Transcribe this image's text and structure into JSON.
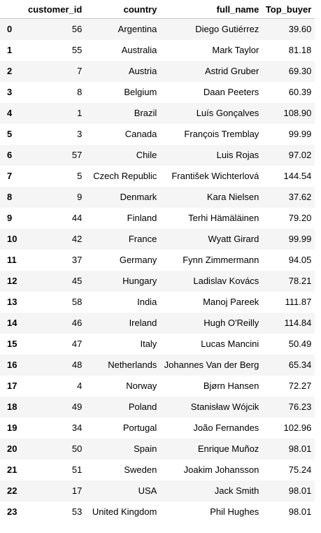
{
  "table": {
    "index_header": "",
    "columns": [
      "customer_id",
      "country",
      "full_name",
      "Top_buyer"
    ],
    "rows": [
      {
        "index": "0",
        "customer_id": "56",
        "country": "Argentina",
        "full_name": "Diego Gutiérrez",
        "Top_buyer": "39.60"
      },
      {
        "index": "1",
        "customer_id": "55",
        "country": "Australia",
        "full_name": "Mark Taylor",
        "Top_buyer": "81.18"
      },
      {
        "index": "2",
        "customer_id": "7",
        "country": "Austria",
        "full_name": "Astrid Gruber",
        "Top_buyer": "69.30"
      },
      {
        "index": "3",
        "customer_id": "8",
        "country": "Belgium",
        "full_name": "Daan Peeters",
        "Top_buyer": "60.39"
      },
      {
        "index": "4",
        "customer_id": "1",
        "country": "Brazil",
        "full_name": "Luís Gonçalves",
        "Top_buyer": "108.90"
      },
      {
        "index": "5",
        "customer_id": "3",
        "country": "Canada",
        "full_name": "François Tremblay",
        "Top_buyer": "99.99"
      },
      {
        "index": "6",
        "customer_id": "57",
        "country": "Chile",
        "full_name": "Luis Rojas",
        "Top_buyer": "97.02"
      },
      {
        "index": "7",
        "customer_id": "5",
        "country": "Czech Republic",
        "full_name": "František Wichterlová",
        "Top_buyer": "144.54"
      },
      {
        "index": "8",
        "customer_id": "9",
        "country": "Denmark",
        "full_name": "Kara Nielsen",
        "Top_buyer": "37.62"
      },
      {
        "index": "9",
        "customer_id": "44",
        "country": "Finland",
        "full_name": "Terhi Hämäläinen",
        "Top_buyer": "79.20"
      },
      {
        "index": "10",
        "customer_id": "42",
        "country": "France",
        "full_name": "Wyatt Girard",
        "Top_buyer": "99.99"
      },
      {
        "index": "11",
        "customer_id": "37",
        "country": "Germany",
        "full_name": "Fynn Zimmermann",
        "Top_buyer": "94.05"
      },
      {
        "index": "12",
        "customer_id": "45",
        "country": "Hungary",
        "full_name": "Ladislav Kovács",
        "Top_buyer": "78.21"
      },
      {
        "index": "13",
        "customer_id": "58",
        "country": "India",
        "full_name": "Manoj Pareek",
        "Top_buyer": "111.87"
      },
      {
        "index": "14",
        "customer_id": "46",
        "country": "Ireland",
        "full_name": "Hugh O'Reilly",
        "Top_buyer": "114.84"
      },
      {
        "index": "15",
        "customer_id": "47",
        "country": "Italy",
        "full_name": "Lucas Mancini",
        "Top_buyer": "50.49"
      },
      {
        "index": "16",
        "customer_id": "48",
        "country": "Netherlands",
        "full_name": "Johannes Van der Berg",
        "Top_buyer": "65.34"
      },
      {
        "index": "17",
        "customer_id": "4",
        "country": "Norway",
        "full_name": "Bjørn Hansen",
        "Top_buyer": "72.27"
      },
      {
        "index": "18",
        "customer_id": "49",
        "country": "Poland",
        "full_name": "Stanisław Wójcik",
        "Top_buyer": "76.23"
      },
      {
        "index": "19",
        "customer_id": "34",
        "country": "Portugal",
        "full_name": "João Fernandes",
        "Top_buyer": "102.96"
      },
      {
        "index": "20",
        "customer_id": "50",
        "country": "Spain",
        "full_name": "Enrique Muñoz",
        "Top_buyer": "98.01"
      },
      {
        "index": "21",
        "customer_id": "51",
        "country": "Sweden",
        "full_name": "Joakim Johansson",
        "Top_buyer": "75.24"
      },
      {
        "index": "22",
        "customer_id": "17",
        "country": "USA",
        "full_name": "Jack Smith",
        "Top_buyer": "98.01"
      },
      {
        "index": "23",
        "customer_id": "53",
        "country": "United Kingdom",
        "full_name": "Phil Hughes",
        "Top_buyer": "98.01"
      }
    ]
  }
}
